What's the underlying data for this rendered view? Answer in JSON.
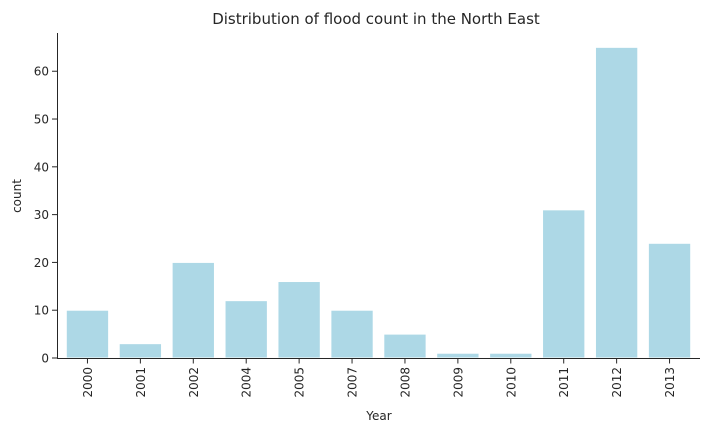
{
  "chart_data": {
    "type": "bar",
    "title": "Distribution of flood count in the North East",
    "xlabel": "Year",
    "ylabel": "count",
    "categories": [
      "2000",
      "2001",
      "2002",
      "2004",
      "2005",
      "2007",
      "2008",
      "2009",
      "2010",
      "2011",
      "2012",
      "2013"
    ],
    "values": [
      10,
      3,
      20,
      12,
      16,
      10,
      5,
      1,
      1,
      31,
      65,
      24
    ],
    "ylim": [
      0,
      68
    ],
    "yticks": [
      0,
      10,
      20,
      30,
      40,
      50,
      60
    ],
    "grid": false,
    "legend": "none",
    "bar_color": "#add8e6",
    "x_tick_rotation": "vertical"
  }
}
